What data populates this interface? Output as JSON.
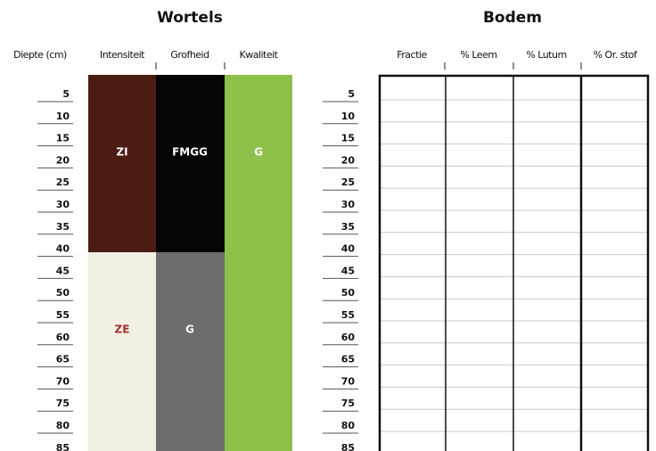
{
  "wortels": {
    "title": "Wortels",
    "columns": [
      "Intensiteit",
      "Grofheid",
      "Kwaliteit"
    ],
    "blocks": [
      [
        "ZI",
        "ZE"
      ],
      [
        "FMGG",
        "G"
      ],
      [
        "G"
      ]
    ]
  },
  "depth_header": "Diepte (cm)",
  "depths": [
    5,
    10,
    15,
    20,
    25,
    30,
    35,
    40,
    45,
    50,
    55,
    60,
    65,
    70,
    75,
    80,
    85
  ],
  "bodem": {
    "title": "Bodem",
    "columns": [
      "Fractie",
      "% Leem",
      "% Lutum",
      "% Or. stof"
    ]
  }
}
